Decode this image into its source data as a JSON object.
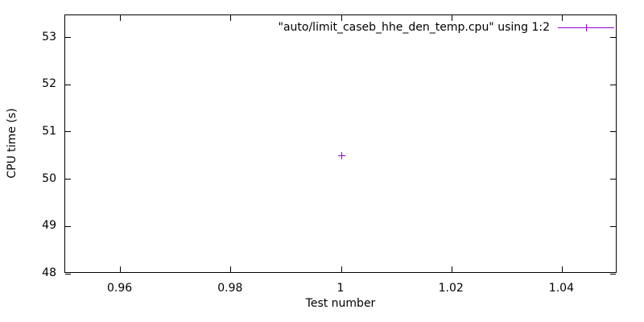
{
  "chart_data": {
    "type": "scatter",
    "title": "",
    "xlabel": "Test number",
    "ylabel": "CPU time (s)",
    "xlim": [
      0.95,
      1.05
    ],
    "ylim": [
      48,
      53.47
    ],
    "xticks": [
      0.96,
      0.98,
      1,
      1.02,
      1.04
    ],
    "xtick_labels": [
      "0.96",
      "0.98",
      "1",
      "1.02",
      "1.04"
    ],
    "yticks": [
      48,
      49,
      50,
      51,
      52,
      53
    ],
    "ytick_labels": [
      "48",
      "49",
      "50",
      "51",
      "52",
      "53"
    ],
    "grid": false,
    "tics_mirror": true,
    "legend_position": "inside top right",
    "series": [
      {
        "name": "\"auto/limit_caseb_hhe_den_temp.cpu\" using 1:2",
        "style": "linespoints",
        "marker": "plus",
        "color": "#9400d3",
        "points": [
          [
            1,
            50.5
          ]
        ]
      }
    ]
  },
  "colors": {
    "background": "#ffffff",
    "axis": "#000000",
    "text": "#000000",
    "series1": "#9400d3"
  }
}
